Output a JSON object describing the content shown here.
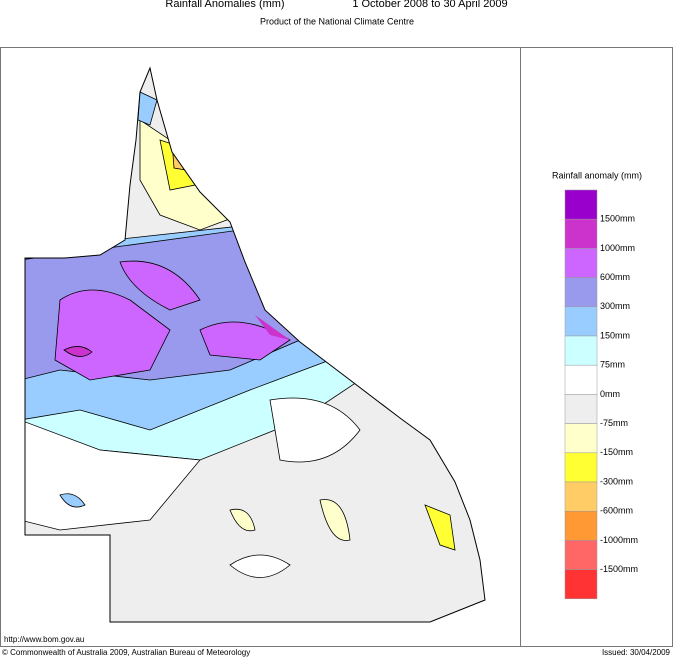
{
  "header": {
    "title": "Rainfall Anomalies (mm)",
    "period": "1 October 2008 to 30 April 2009",
    "subtitle": "Product of the National Climate Centre"
  },
  "legend": {
    "title": "Rainfall anomaly (mm)",
    "colors": [
      "#9900cc",
      "#cc33cc",
      "#cc66ff",
      "#9999ee",
      "#99ccff",
      "#ccffff",
      "#ffffff",
      "#eeeeee",
      "#ffffcc",
      "#ffff33",
      "#ffcc66",
      "#ff9933",
      "#ff6666",
      "#ff3333"
    ],
    "labels": [
      "1500mm",
      "1000mm",
      "600mm",
      "300mm",
      "150mm",
      "75mm",
      "0mm",
      "-75mm",
      "-150mm",
      "-300mm",
      "-600mm",
      "-1000mm",
      "-1500mm"
    ]
  },
  "footer": {
    "url": "http://www.bom.gov.au",
    "copyright": "© Commonwealth of Australia 2009, Australian Bureau of Meteorology",
    "issued": "Issued: 30/04/2009"
  }
}
